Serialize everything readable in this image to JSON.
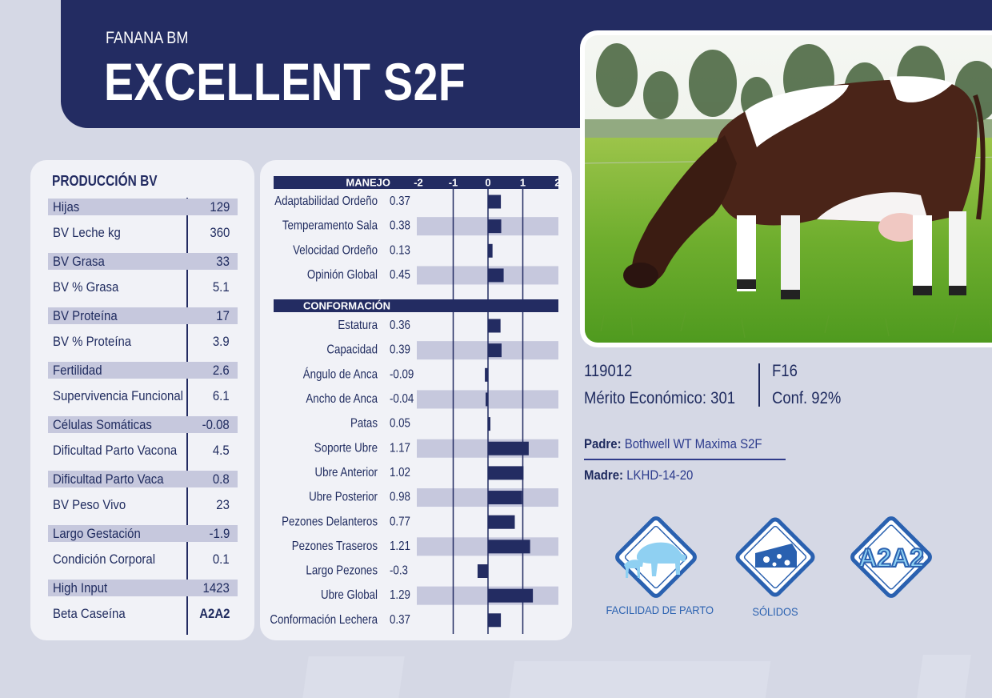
{
  "header": {
    "subtitle": "FANANA BM",
    "title": "EXCELLENT S2F"
  },
  "production": {
    "title": "PRODUCCIÓN BV",
    "rows": [
      {
        "label": "Hijas",
        "value": "129",
        "shaded": true
      },
      {
        "label": "BV Leche kg",
        "value": "360",
        "shaded": false
      },
      {
        "label": "BV Grasa",
        "value": "33",
        "shaded": true
      },
      {
        "label": "BV % Grasa",
        "value": "5.1",
        "shaded": false
      },
      {
        "label": "BV Proteína",
        "value": "17",
        "shaded": true
      },
      {
        "label": "BV % Proteína",
        "value": "3.9",
        "shaded": false
      },
      {
        "label": "Fertilidad",
        "value": "2.6",
        "shaded": true
      },
      {
        "label": "Supervivencia Funcional",
        "value": "6.1",
        "shaded": false
      },
      {
        "label": "Células Somáticas",
        "value": "-0.08",
        "shaded": true
      },
      {
        "label": "Dificultad Parto Vacona",
        "value": "4.5",
        "shaded": false
      },
      {
        "label": "Dificultad Parto Vaca",
        "value": "0.8",
        "shaded": true
      },
      {
        "label": "BV Peso Vivo",
        "value": "23",
        "shaded": false
      },
      {
        "label": "Largo Gestación",
        "value": "-1.9",
        "shaded": true
      },
      {
        "label": "Condición Corporal",
        "value": "0.1",
        "shaded": false
      },
      {
        "label": "High Input",
        "value": "1423",
        "shaded": true
      },
      {
        "label": "Beta Caseína",
        "value": "A2A2",
        "shaded": false
      }
    ]
  },
  "chart_data": {
    "type": "bar",
    "orientation": "horizontal",
    "xlim": [
      -2,
      2
    ],
    "ticks": [
      "-2",
      "-1",
      "0",
      "1",
      "2"
    ],
    "bar_color": "#232c62",
    "sections": [
      {
        "name": "MANEJO",
        "categories": [
          "Adaptabilidad Ordeño",
          "Temperamento Sala",
          "Velocidad Ordeño",
          "Opinión Global"
        ],
        "values": [
          0.37,
          0.38,
          0.13,
          0.45
        ],
        "labels": [
          "0.37",
          "0.38",
          "0.13",
          "0.45"
        ]
      },
      {
        "name": "CONFORMACIÓN",
        "categories": [
          "Estatura",
          "Capacidad",
          "Ángulo de Anca",
          "Ancho de Anca",
          "Patas",
          "Soporte Ubre",
          "Ubre Anterior",
          "Ubre Posterior",
          "Pezones Delanteros",
          "Pezones Traseros",
          "Largo Pezones",
          "Ubre Global",
          "Conformación Lechera"
        ],
        "values": [
          0.36,
          0.39,
          -0.09,
          -0.04,
          0.05,
          1.17,
          1.02,
          0.98,
          0.77,
          1.21,
          -0.3,
          1.29,
          0.37
        ],
        "labels": [
          "0.36",
          "0.39",
          "-0.09",
          "-0.04",
          "0.05",
          "1.17",
          "1.02",
          "0.98",
          "0.77",
          "1.21",
          "-0.3",
          "1.29",
          "0.37"
        ]
      }
    ]
  },
  "info": {
    "id": "119012",
    "merit": "Mérito Económico: 301",
    "generation": "F16",
    "confidence": "Conf. 92%",
    "sire_label": "Padre:",
    "sire": "Bothwell WT Maxima S2F",
    "dam_label": "Madre:",
    "dam": "LKHD-14-20"
  },
  "badges": {
    "calving": "FACILIDAD DE PARTO",
    "solids": "SÓLIDOS",
    "a2a2": "A2A2"
  },
  "colors": {
    "navy": "#232c62",
    "shade": "#c6c8dd",
    "badge_blue": "#2a61b0",
    "badge_light": "#8fd0f2"
  }
}
